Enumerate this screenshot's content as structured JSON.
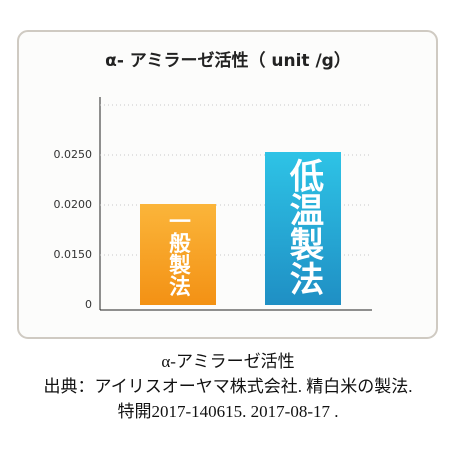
{
  "chart_data": {
    "type": "bar",
    "title": "α- アミラーゼ活性（ unit /g）",
    "categories": [
      "一般製法",
      "低温製法"
    ],
    "values": [
      0.0201,
      0.0253
    ],
    "colors": [
      [
        "#fbb53a",
        "#f39114"
      ],
      [
        "#2ec3e6",
        "#1f8fc4"
      ]
    ],
    "ylim": [
      0,
      0.03
    ],
    "yticks": [
      0,
      {
        "value": 0.015,
        "label": "0.0150"
      },
      {
        "value": 0.02,
        "label": "0.0200"
      },
      {
        "value": 0.025,
        "label": "0.0250"
      }
    ],
    "axis_break": true,
    "grid": true,
    "caption": [
      "α-アミラーゼ活性",
      "出典：アイリスオーヤマ株式会社. 精白米の製法.",
      "特開2017-140615. 2017-08-17 ."
    ]
  }
}
